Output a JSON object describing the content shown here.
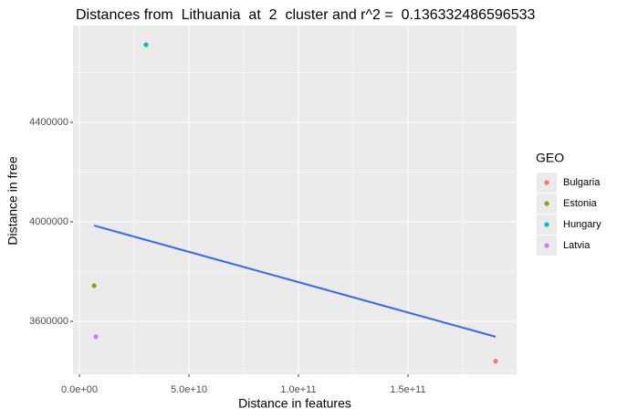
{
  "chart_data": {
    "type": "scatter",
    "title": "Distances from  Lithuania  at  2  cluster and r^2 =  0.136332486596533",
    "x_label": "Distance in features",
    "y_label": "Distance in free",
    "legend_title": "GEO",
    "series": [
      {
        "name": "Bulgaria",
        "color": "#F8766D",
        "x": [
          190000000000
        ],
        "values": [
          3440000
        ]
      },
      {
        "name": "Estonia",
        "color": "#7CAE00",
        "x": [
          6700000000
        ],
        "values": [
          3743000
        ]
      },
      {
        "name": "Hungary",
        "color": "#00BFC4",
        "x": [
          30400000000
        ],
        "values": [
          4712000
        ]
      },
      {
        "name": "Latvia",
        "color": "#C77CFF",
        "x": [
          7500000000
        ],
        "values": [
          3538000
        ]
      }
    ],
    "fit": {
      "color": "#3366FF",
      "x": [
        6700000000,
        190000000000
      ],
      "y": [
        3985000,
        3538000
      ]
    },
    "xlim": [
      -2920000000,
      199600000000
    ],
    "ylim": [
      3387156,
      4789000
    ],
    "xticks": [
      {
        "value": 0,
        "label": "0.0e+00"
      },
      {
        "value": 50000000000,
        "label": "5.0e+10"
      },
      {
        "value": 100000000000,
        "label": "1.0e+11"
      },
      {
        "value": 150000000000,
        "label": "1.5e+11"
      }
    ],
    "yticks": [
      3600000,
      4000000,
      4400000
    ],
    "grid": true
  }
}
